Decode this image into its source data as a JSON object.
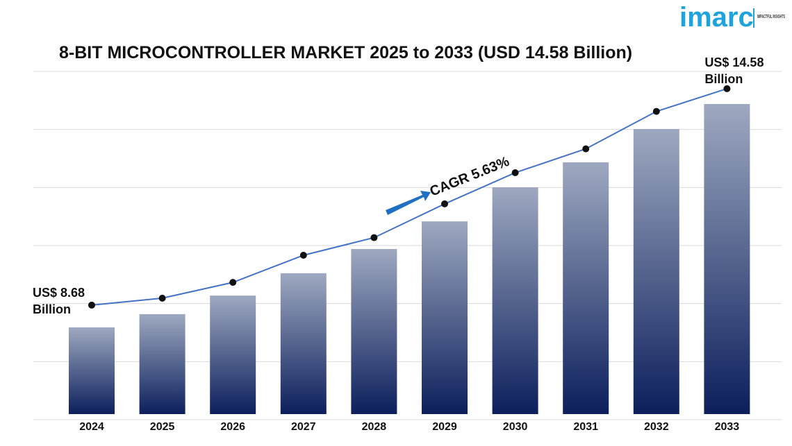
{
  "logo": {
    "name": "imarc",
    "tagline": "IMPACTFUL INSIGHTS"
  },
  "chart_data": {
    "type": "bar",
    "title": "8-BIT MICROCONTROLLER MARKET 2025 to 2033 (USD 14.58 Billion)",
    "annotation": "CAGR 5.63%",
    "categories": [
      "2024",
      "2025",
      "2026",
      "2027",
      "2028",
      "2029",
      "2030",
      "2031",
      "2032",
      "2033"
    ],
    "series": [
      {
        "type": "bar",
        "color": "#0c1f5c",
        "values": [
          8.68,
          9.03,
          9.52,
          10.11,
          10.75,
          11.48,
          12.38,
          13.04,
          13.92,
          14.58
        ],
        "value_labels": [
          "US$ 8.68 Billion",
          null,
          null,
          null,
          null,
          null,
          null,
          null,
          null,
          "US$ 14.58 Billion"
        ]
      },
      {
        "type": "line",
        "axis": "y2",
        "color": "#4472c4",
        "values": [
          8.68,
          8.87,
          9.3,
          10.04,
          10.52,
          11.44,
          12.29,
          12.94,
          13.96,
          14.58
        ]
      }
    ],
    "ylim": [
      6.39,
      15.44
    ],
    "y2lim": [
      5.71,
      15.05
    ],
    "grid": true
  }
}
